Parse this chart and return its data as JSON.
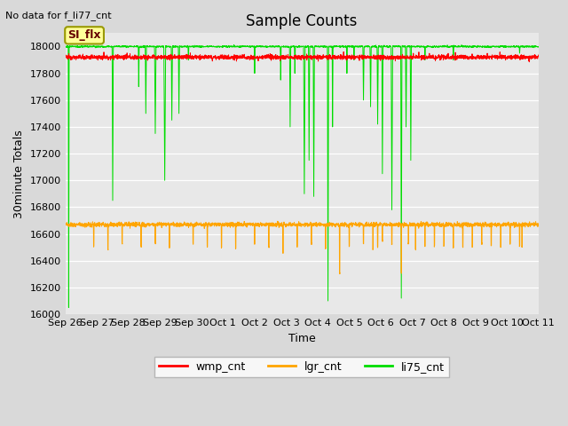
{
  "title": "Sample Counts",
  "top_left_text": "No data for f_li77_cnt",
  "xlabel": "Time",
  "ylabel": "30minute Totals",
  "ylim": [
    16000,
    18100
  ],
  "yticks": [
    16000,
    16200,
    16400,
    16600,
    16800,
    17000,
    17200,
    17400,
    17600,
    17800,
    18000
  ],
  "x_labels": [
    "Sep 26",
    "Sep 27",
    "Sep 28",
    "Sep 29",
    "Sep 30",
    "Oct 1",
    "Oct 2",
    "Oct 3",
    "Oct 4",
    "Oct 5",
    "Oct 6",
    "Oct 7",
    "Oct 8",
    "Oct 9",
    "Oct 10",
    "Oct 11"
  ],
  "wmp_color": "#ff0000",
  "lgr_color": "#ffa500",
  "li75_color": "#00dd00",
  "annotation_text": "SI_flx",
  "legend_labels": [
    "wmp_cnt",
    "lgr_cnt",
    "li75_cnt"
  ],
  "bg_color": "#e8e8e8",
  "grid_color": "#ffffff",
  "wmp_base": 17920,
  "lgr_base": 16670,
  "li75_base": 18000,
  "num_points": 3000,
  "title_fontsize": 12,
  "axis_fontsize": 9,
  "tick_fontsize": 8
}
